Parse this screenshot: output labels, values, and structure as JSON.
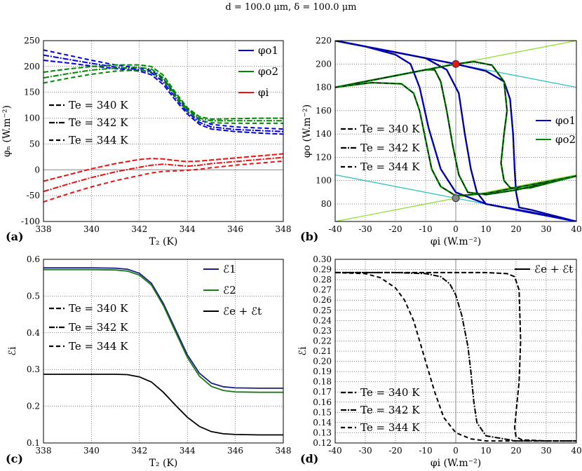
{
  "suptitle": "d = 100.0 μm, δ = 100.0 μm",
  "colors": {
    "blue": "#0000ee",
    "green": "#008800",
    "red": "#ee1111",
    "navy": "#1a1a8c",
    "darkgreen": "#1a7a1a",
    "black": "#000000",
    "cyan": "#20c0c0",
    "lime": "#88e020",
    "gray": "#888888"
  },
  "chart_data": [
    {
      "id": "a",
      "type": "line",
      "panel_label": "(a)",
      "xlabel": "T₂ (K)",
      "ylabel": "φₙ (W.m⁻²)",
      "xlim": [
        338,
        348
      ],
      "ylim": [
        -100,
        250
      ],
      "xticks": [
        338,
        340,
        342,
        344,
        346,
        348
      ],
      "yticks": [
        -100,
        -50,
        0,
        50,
        100,
        150,
        200,
        250
      ],
      "legend_colored": [
        "φo1",
        "φo2",
        "φi"
      ],
      "legend_styles": [
        "Te = 340 K",
        "Te = 342 K",
        "Te = 344 K"
      ],
      "x": [
        338,
        339,
        340,
        341,
        342,
        342.5,
        343,
        343.5,
        344,
        344.5,
        345,
        346,
        347,
        348
      ],
      "series": [
        {
          "name": "φo1 Te=340K",
          "color": "blue",
          "values": [
            212,
            207,
            201,
            196,
            191,
            184,
            165,
            135,
            108,
            88,
            79,
            74,
            71,
            69
          ]
        },
        {
          "name": "φo1 Te=342K",
          "color": "blue",
          "values": [
            222,
            214,
            206,
            199,
            194,
            188,
            170,
            140,
            112,
            92,
            83,
            78,
            76,
            74
          ]
        },
        {
          "name": "φo1 Te=344K",
          "color": "blue",
          "values": [
            232,
            222,
            212,
            203,
            197,
            192,
            176,
            146,
            117,
            97,
            88,
            83,
            81,
            79
          ]
        },
        {
          "name": "φo2 Te=340K",
          "color": "green",
          "values": [
            189,
            195,
            200,
            203,
            203,
            200,
            183,
            150,
            120,
            103,
            98,
            99,
            100,
            100
          ]
        },
        {
          "name": "φo2 Te=342K",
          "color": "green",
          "values": [
            178,
            186,
            193,
            197,
            198,
            195,
            178,
            146,
            117,
            100,
            95,
            95,
            95,
            95
          ]
        },
        {
          "name": "φo2 Te=344K",
          "color": "green",
          "values": [
            168,
            177,
            185,
            191,
            193,
            190,
            173,
            142,
            113,
            96,
            91,
            90,
            90,
            90
          ]
        },
        {
          "name": "φi Te=340K",
          "color": "red",
          "values": [
            -22,
            -10,
            2,
            12,
            20,
            22,
            21,
            18,
            16,
            17,
            19,
            23,
            27,
            31
          ]
        },
        {
          "name": "φi Te=342K",
          "color": "red",
          "values": [
            -42,
            -28,
            -15,
            -4,
            5,
            9,
            11,
            9,
            7,
            9,
            12,
            16,
            20,
            24
          ]
        },
        {
          "name": "φi Te=344K",
          "color": "red",
          "values": [
            -62,
            -47,
            -33,
            -21,
            -11,
            -6,
            -3,
            -2,
            -1,
            1,
            4,
            9,
            13,
            17
          ]
        }
      ]
    },
    {
      "id": "b",
      "type": "line",
      "panel_label": "(b)",
      "xlabel": "φi (W.m⁻²)",
      "ylabel": "φo (W.m⁻²)",
      "xlim": [
        -40,
        40
      ],
      "ylim": [
        65,
        220
      ],
      "xticks": [
        -40,
        -30,
        -20,
        -10,
        0,
        10,
        20,
        30,
        40
      ],
      "yticks": [
        80,
        100,
        120,
        140,
        160,
        180,
        200,
        220
      ],
      "legend_colored": [
        "φo1",
        "φo2"
      ],
      "legend_styles": [
        "Te = 340 K",
        "Te = 342 K",
        "Te = 344 K"
      ],
      "straight_lines": [
        {
          "color": "cyan",
          "x": [
            -40,
            40
          ],
          "y": [
            220,
            180
          ]
        },
        {
          "color": "cyan",
          "x": [
            -40,
            40
          ],
          "y": [
            105,
            65
          ]
        },
        {
          "color": "lime",
          "x": [
            -40,
            40
          ],
          "y": [
            180,
            220
          ]
        },
        {
          "color": "lime",
          "x": [
            -40,
            40
          ],
          "y": [
            65,
            105
          ]
        }
      ],
      "markers": [
        {
          "color": "red",
          "x": 0,
          "y": 200
        },
        {
          "color": "gray",
          "x": 0,
          "y": 85
        }
      ],
      "series": [
        {
          "name": "φo1 Te=340K",
          "color": "blue",
          "x": [
            -40,
            -20,
            0,
            10,
            16,
            18,
            19,
            19.5,
            20,
            21,
            25,
            40
          ],
          "y": [
            220,
            210,
            200,
            194,
            185,
            170,
            140,
            110,
            90,
            77,
            75,
            65
          ]
        },
        {
          "name": "φo1 Te=342K",
          "color": "blue",
          "x": [
            -40,
            -20,
            -10,
            -3,
            1,
            3,
            5,
            7,
            10,
            20,
            40
          ],
          "y": [
            220,
            210,
            205,
            195,
            175,
            140,
            110,
            90,
            80,
            75,
            65
          ]
        },
        {
          "name": "φo1 Te=344K",
          "color": "blue",
          "x": [
            -40,
            -30,
            -20,
            -15,
            -12,
            -9,
            -5,
            0,
            10,
            25,
            40
          ],
          "y": [
            220,
            215,
            208,
            200,
            180,
            145,
            110,
            90,
            80,
            73,
            65
          ]
        },
        {
          "name": "φo2 Te=340K",
          "color": "green",
          "x": [
            -40,
            -20,
            0,
            6,
            12,
            16,
            17,
            16,
            15,
            16,
            18,
            21,
            25,
            40
          ],
          "y": [
            180,
            190,
            200,
            202,
            199,
            185,
            160,
            140,
            115,
            100,
            94,
            93,
            94,
            104
          ]
        },
        {
          "name": "φo2 Te=342K",
          "color": "green",
          "x": [
            -40,
            -20,
            -10,
            -7,
            -5,
            -3,
            -1,
            1,
            4,
            10,
            20,
            40
          ],
          "y": [
            180,
            190,
            195,
            195,
            185,
            160,
            130,
            105,
            90,
            88,
            92,
            104
          ]
        },
        {
          "name": "φo2 Te=344K",
          "color": "green",
          "x": [
            -40,
            -28,
            -18,
            -14,
            -12,
            -10,
            -8,
            -5,
            0,
            10,
            40
          ],
          "y": [
            180,
            184,
            183,
            175,
            160,
            135,
            110,
            95,
            87,
            89,
            104
          ]
        }
      ]
    },
    {
      "id": "c",
      "type": "line",
      "panel_label": "(c)",
      "xlabel": "T₂ (K)",
      "ylabel": "ℰi",
      "xlim": [
        338,
        348
      ],
      "ylim": [
        0.1,
        0.6
      ],
      "xticks": [
        338,
        340,
        342,
        344,
        346,
        348
      ],
      "yticks": [
        0.1,
        0.2,
        0.3,
        0.4,
        0.5,
        0.6
      ],
      "legend_colored": [
        "ℰ1",
        "ℰ2",
        "ℰe + ℰt"
      ],
      "legend_styles": [
        "Te = 340 K",
        "Te = 342 K",
        "Te = 344 K"
      ],
      "x": [
        338,
        340,
        341,
        341.5,
        342,
        342.5,
        343,
        343.5,
        344,
        344.5,
        345,
        345.5,
        346,
        347,
        348
      ],
      "series": [
        {
          "name": "ℰ1",
          "color": "navy",
          "values": [
            0.577,
            0.577,
            0.576,
            0.573,
            0.562,
            0.535,
            0.48,
            0.41,
            0.34,
            0.29,
            0.263,
            0.253,
            0.25,
            0.249,
            0.249
          ]
        },
        {
          "name": "ℰ2",
          "color": "darkgreen",
          "values": [
            0.572,
            0.572,
            0.571,
            0.568,
            0.557,
            0.53,
            0.474,
            0.403,
            0.333,
            0.282,
            0.254,
            0.243,
            0.239,
            0.238,
            0.238
          ]
        },
        {
          "name": "ℰe + ℰt",
          "color": "black",
          "values": [
            0.287,
            0.287,
            0.287,
            0.286,
            0.28,
            0.266,
            0.238,
            0.203,
            0.17,
            0.145,
            0.131,
            0.125,
            0.123,
            0.122,
            0.122
          ]
        }
      ]
    },
    {
      "id": "d",
      "type": "line",
      "panel_label": "(d)",
      "xlabel": "φi (W.m⁻²)",
      "ylabel": "ℰi",
      "xlim": [
        -40,
        40
      ],
      "ylim": [
        0.12,
        0.3
      ],
      "xticks": [
        -40,
        -30,
        -20,
        -10,
        0,
        10,
        20,
        30,
        40
      ],
      "yticks": [
        0.12,
        0.13,
        0.14,
        0.15,
        0.16,
        0.17,
        0.18,
        0.19,
        0.2,
        0.21,
        0.22,
        0.23,
        0.24,
        0.25,
        0.26,
        0.27,
        0.28,
        0.29,
        0.3
      ],
      "legend_colored": [
        "ℰe + ℰt"
      ],
      "legend_styles": [
        "Te = 340 K",
        "Te = 342 K",
        "Te = 344 K"
      ],
      "series": [
        {
          "name": "Te=340K",
          "color": "black",
          "x": [
            -40,
            0,
            10,
            17,
            19.5,
            21,
            21.5,
            21,
            20,
            19.5,
            20,
            22,
            30,
            40
          ],
          "y": [
            0.287,
            0.287,
            0.287,
            0.286,
            0.283,
            0.27,
            0.22,
            0.18,
            0.15,
            0.135,
            0.126,
            0.123,
            0.122,
            0.122
          ]
        },
        {
          "name": "Te=342K",
          "color": "black",
          "x": [
            -40,
            -20,
            -10,
            -5,
            -2,
            0,
            2,
            4,
            5,
            6,
            7,
            10,
            20,
            40
          ],
          "y": [
            0.287,
            0.287,
            0.286,
            0.283,
            0.276,
            0.265,
            0.245,
            0.215,
            0.19,
            0.16,
            0.14,
            0.127,
            0.122,
            0.122
          ]
        },
        {
          "name": "Te=344K",
          "color": "black",
          "x": [
            -40,
            -30,
            -25,
            -20,
            -17,
            -14,
            -11,
            -9,
            -7,
            -4,
            0,
            5,
            10,
            40
          ],
          "y": [
            0.287,
            0.286,
            0.282,
            0.272,
            0.26,
            0.24,
            0.21,
            0.19,
            0.17,
            0.145,
            0.13,
            0.124,
            0.122,
            0.122
          ]
        }
      ]
    }
  ]
}
